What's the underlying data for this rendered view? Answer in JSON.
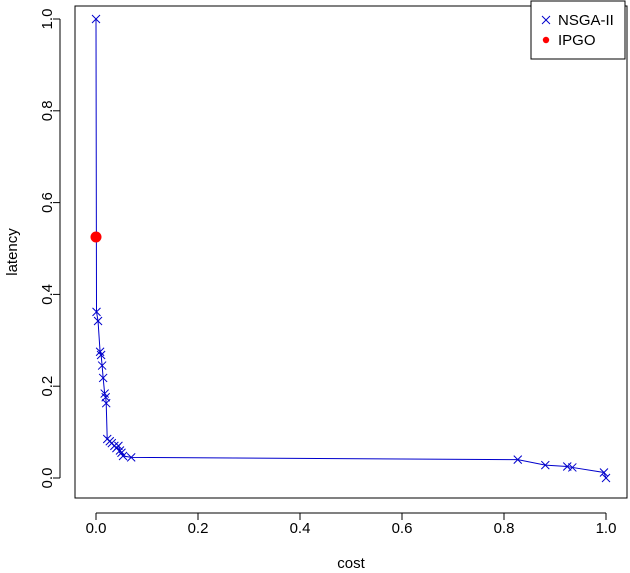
{
  "chart_data": {
    "type": "scatter",
    "xlabel": "cost",
    "ylabel": "latency",
    "xlim": [
      0,
      1
    ],
    "ylim": [
      0,
      1
    ],
    "xticks": [
      "0.0",
      "0.2",
      "0.4",
      "0.6",
      "0.8",
      "1.0"
    ],
    "yticks": [
      "0.0",
      "0.2",
      "0.4",
      "0.6",
      "0.8",
      "1.0"
    ],
    "grid": false,
    "legend_position": "top-right",
    "series": [
      {
        "name": "NSGA-II",
        "marker": "x",
        "color": "#0000cc",
        "line": true,
        "points": [
          [
            0.0,
            1.0
          ],
          [
            0.001,
            0.362
          ],
          [
            0.004,
            0.342
          ],
          [
            0.008,
            0.275
          ],
          [
            0.01,
            0.268
          ],
          [
            0.012,
            0.245
          ],
          [
            0.014,
            0.218
          ],
          [
            0.017,
            0.184
          ],
          [
            0.019,
            0.176
          ],
          [
            0.02,
            0.163
          ],
          [
            0.022,
            0.085
          ],
          [
            0.027,
            0.08
          ],
          [
            0.031,
            0.076
          ],
          [
            0.036,
            0.07
          ],
          [
            0.04,
            0.065
          ],
          [
            0.044,
            0.07
          ],
          [
            0.047,
            0.06
          ],
          [
            0.05,
            0.055
          ],
          [
            0.053,
            0.048
          ],
          [
            0.069,
            0.045
          ],
          [
            0.827,
            0.04
          ],
          [
            0.881,
            0.028
          ],
          [
            0.924,
            0.025
          ],
          [
            0.934,
            0.023
          ],
          [
            0.996,
            0.012
          ],
          [
            1.0,
            0.0
          ]
        ]
      },
      {
        "name": "IPGO",
        "marker": "dot",
        "color": "#ff0000",
        "line": false,
        "points": [
          [
            0.0,
            0.525
          ]
        ]
      }
    ]
  }
}
